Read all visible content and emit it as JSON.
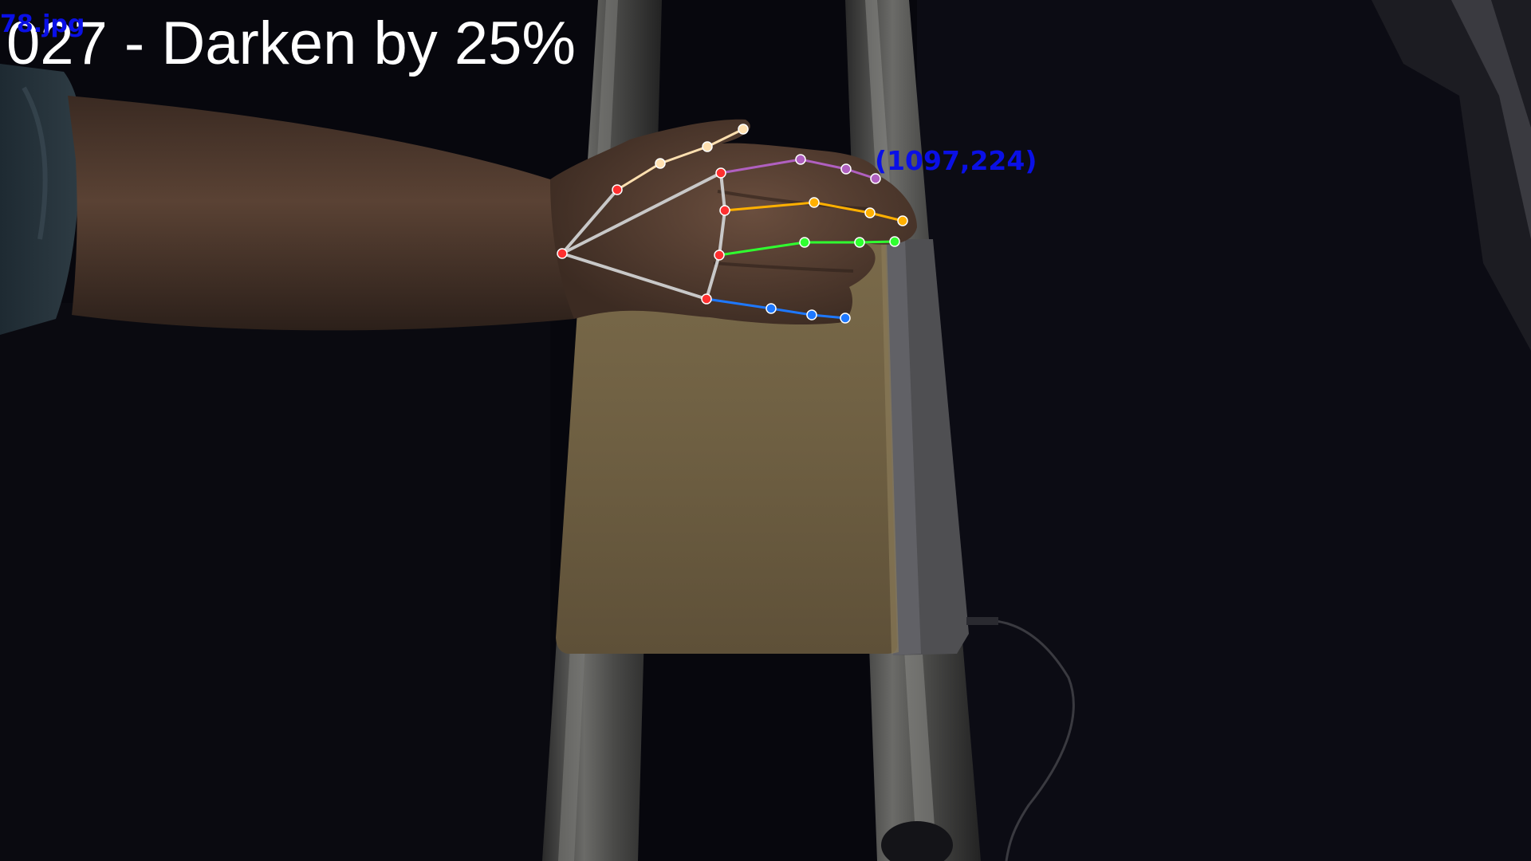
{
  "overlay": {
    "title": "027 - Darken by 25%",
    "filename": "78.jpg",
    "coordinate": "(1097,224)"
  },
  "colors": {
    "background": "#07070d",
    "text_title": "#ffffff",
    "text_annotation": "#0a10e6",
    "skeleton_palm": "#c8c8c8",
    "joint_palm": "#ff3030",
    "thumb": "#ffe0b0",
    "index": "#b060c0",
    "middle": "#ffb000",
    "ring": "#30ff30",
    "pinky": "#1e78ff"
  },
  "hand_landmarks": {
    "connection_groups": [
      "palm",
      "thumb",
      "index",
      "middle",
      "ring",
      "pinky"
    ]
  }
}
